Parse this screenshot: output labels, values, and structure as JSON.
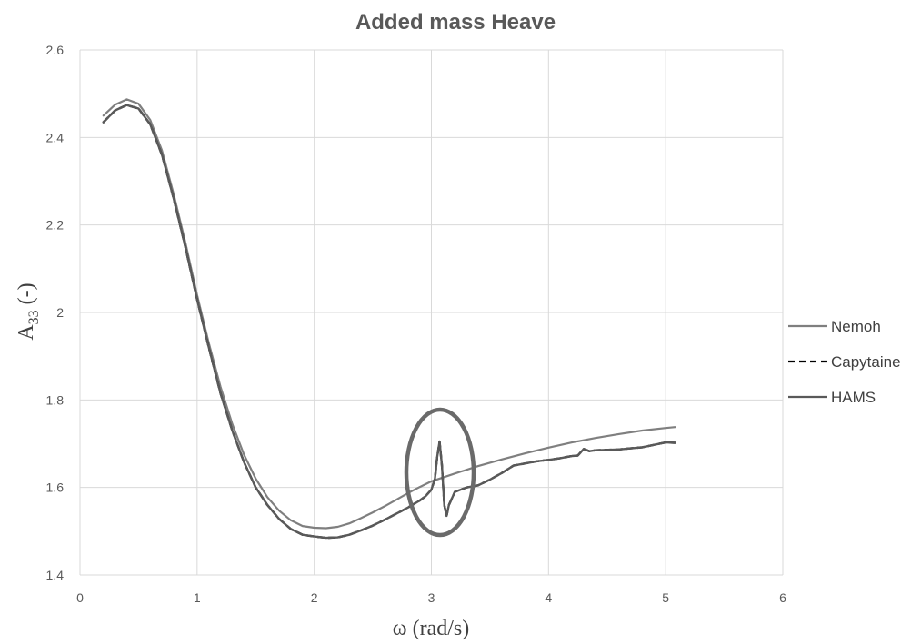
{
  "chart_data": {
    "type": "line",
    "title": "Added mass Heave",
    "xlabel": "ω (rad/s)",
    "ylabel": {
      "main": "A",
      "sub": "33",
      "suffix": " (-)"
    },
    "xlim": [
      0,
      6
    ],
    "ylim": [
      1.4,
      2.6
    ],
    "xticks": [
      0,
      1,
      2,
      3,
      4,
      5,
      6
    ],
    "yticks": [
      1.4,
      1.6,
      1.8,
      2,
      2.2,
      2.4,
      2.6
    ],
    "grid": true,
    "legend_position": "right",
    "annotation": "ellipse around resonance near ω = 3.1",
    "series": [
      {
        "name": "Nemoh",
        "color": "#7f7f7f",
        "dash": "solid",
        "x": [
          0.2,
          0.3,
          0.4,
          0.5,
          0.6,
          0.7,
          0.8,
          0.9,
          1.0,
          1.1,
          1.2,
          1.3,
          1.4,
          1.5,
          1.6,
          1.7,
          1.8,
          1.9,
          2.0,
          2.1,
          2.2,
          2.3,
          2.4,
          2.5,
          2.6,
          2.7,
          2.8,
          2.9,
          3.0,
          3.2,
          3.4,
          3.6,
          3.8,
          4.0,
          4.2,
          4.4,
          4.6,
          4.8,
          5.0,
          5.08
        ],
        "y": [
          2.45,
          2.475,
          2.487,
          2.477,
          2.44,
          2.37,
          2.27,
          2.16,
          2.04,
          1.93,
          1.83,
          1.745,
          1.675,
          1.62,
          1.578,
          1.547,
          1.525,
          1.512,
          1.508,
          1.507,
          1.51,
          1.518,
          1.53,
          1.543,
          1.557,
          1.572,
          1.587,
          1.601,
          1.614,
          1.632,
          1.649,
          1.664,
          1.678,
          1.691,
          1.703,
          1.713,
          1.722,
          1.73,
          1.736,
          1.738
        ]
      },
      {
        "name": "Capytaine",
        "color": "#000000",
        "dash": "dashed",
        "x": [
          0.2,
          0.3,
          0.4,
          0.5,
          0.6,
          0.7,
          0.8,
          0.9,
          1.0,
          1.1,
          1.2,
          1.3,
          1.4,
          1.5,
          1.6,
          1.7,
          1.8,
          1.9,
          2.0,
          2.1,
          2.2,
          2.3,
          2.4,
          2.5,
          2.6,
          2.7,
          2.8,
          2.9,
          2.95,
          3.0,
          3.03,
          3.05,
          3.07,
          3.09,
          3.11,
          3.13,
          3.15,
          3.2,
          3.3,
          3.4,
          3.5,
          3.6,
          3.7,
          3.8,
          3.9,
          4.0,
          4.1,
          4.2,
          4.25,
          4.3,
          4.35,
          4.4,
          4.6,
          4.8,
          5.0,
          5.08
        ],
        "y": [
          2.435,
          2.462,
          2.474,
          2.466,
          2.43,
          2.36,
          2.26,
          2.15,
          2.03,
          1.92,
          1.815,
          1.73,
          1.658,
          1.6,
          1.56,
          1.528,
          1.505,
          1.492,
          1.488,
          1.485,
          1.486,
          1.492,
          1.502,
          1.513,
          1.526,
          1.54,
          1.554,
          1.57,
          1.58,
          1.595,
          1.62,
          1.67,
          1.705,
          1.65,
          1.56,
          1.535,
          1.56,
          1.59,
          1.6,
          1.605,
          1.618,
          1.633,
          1.65,
          1.655,
          1.66,
          1.663,
          1.667,
          1.672,
          1.673,
          1.688,
          1.683,
          1.685,
          1.687,
          1.692,
          1.703,
          1.702
        ]
      },
      {
        "name": "HAMS",
        "color": "#595959",
        "dash": "solid",
        "x": [
          0.2,
          0.3,
          0.4,
          0.5,
          0.6,
          0.7,
          0.8,
          0.9,
          1.0,
          1.1,
          1.2,
          1.3,
          1.4,
          1.5,
          1.6,
          1.7,
          1.8,
          1.9,
          2.0,
          2.1,
          2.2,
          2.3,
          2.4,
          2.5,
          2.6,
          2.7,
          2.8,
          2.9,
          2.95,
          3.0,
          3.03,
          3.05,
          3.07,
          3.09,
          3.11,
          3.13,
          3.15,
          3.2,
          3.3,
          3.4,
          3.5,
          3.6,
          3.7,
          3.8,
          3.9,
          4.0,
          4.1,
          4.2,
          4.25,
          4.3,
          4.35,
          4.4,
          4.6,
          4.8,
          5.0,
          5.08
        ],
        "y": [
          2.435,
          2.462,
          2.474,
          2.466,
          2.43,
          2.36,
          2.26,
          2.15,
          2.03,
          1.92,
          1.815,
          1.73,
          1.658,
          1.6,
          1.56,
          1.528,
          1.505,
          1.492,
          1.488,
          1.485,
          1.486,
          1.492,
          1.502,
          1.513,
          1.526,
          1.54,
          1.554,
          1.57,
          1.58,
          1.595,
          1.62,
          1.67,
          1.705,
          1.65,
          1.56,
          1.535,
          1.56,
          1.59,
          1.6,
          1.605,
          1.618,
          1.633,
          1.65,
          1.655,
          1.66,
          1.663,
          1.667,
          1.672,
          1.673,
          1.688,
          1.683,
          1.685,
          1.687,
          1.692,
          1.703,
          1.702
        ]
      }
    ]
  }
}
